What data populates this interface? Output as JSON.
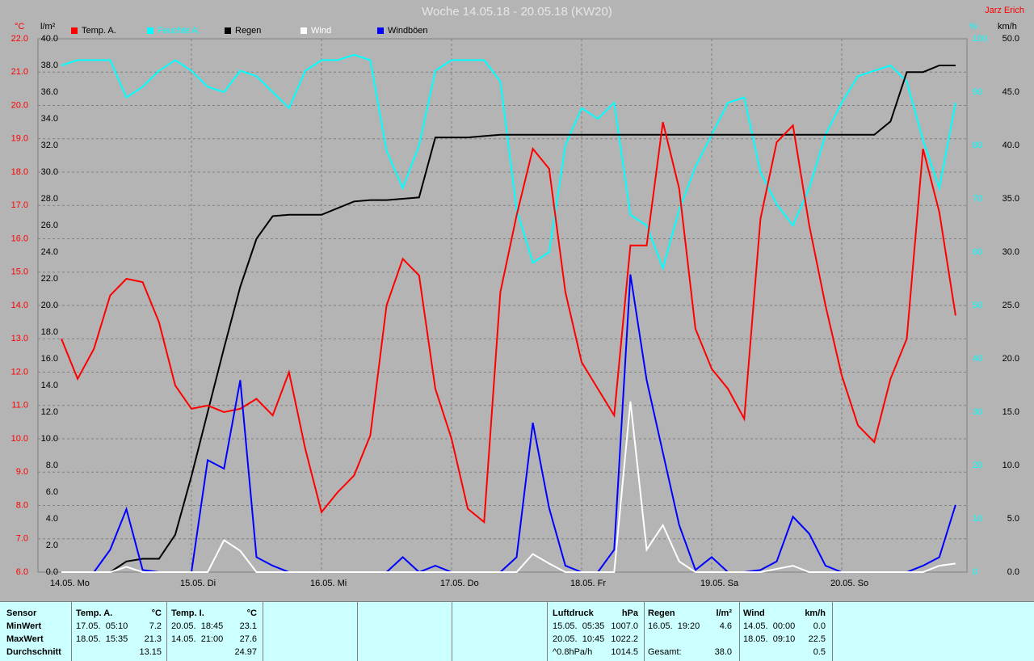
{
  "chart_data": {
    "type": "line",
    "title": "Woche 14.05.18 - 20.05.18 (KW20)",
    "author": "Jarz Erich",
    "ylabel": "°C",
    "y2label": "l/m²",
    "y3label": "%",
    "y4label": "km/h",
    "xticks": [
      "14.05. Mo",
      "15.05. Di",
      "16.05. Mi",
      "17.05. Do",
      "18.05. Fr",
      "19.05. Sa",
      "20.05. So"
    ],
    "ylim": [
      6,
      22
    ],
    "yticks": [
      {
        "value": 6,
        "label": "6.0"
      },
      {
        "value": 7,
        "label": "7.0"
      },
      {
        "value": 8,
        "label": "8.0"
      },
      {
        "value": 9,
        "label": "9.0"
      },
      {
        "value": 10,
        "label": "10.0"
      },
      {
        "value": 11,
        "label": "11.0"
      },
      {
        "value": 12,
        "label": "12.0"
      },
      {
        "value": 13,
        "label": "13.0"
      },
      {
        "value": 14,
        "label": "14.0"
      },
      {
        "value": 15,
        "label": "15.0"
      },
      {
        "value": 16,
        "label": "16.0"
      },
      {
        "value": 17,
        "label": "17.0"
      },
      {
        "value": 18,
        "label": "18.0"
      },
      {
        "value": 19,
        "label": "19.0"
      },
      {
        "value": 20,
        "label": "20.0"
      },
      {
        "value": 21,
        "label": "21.0"
      },
      {
        "value": 22,
        "label": "22.0"
      }
    ],
    "y2lim": [
      0,
      40
    ],
    "y2ticks": [
      {
        "value": 0,
        "label": "0.0"
      },
      {
        "value": 2,
        "label": "2.0"
      },
      {
        "value": 4,
        "label": "4.0"
      },
      {
        "value": 6,
        "label": "6.0"
      },
      {
        "value": 8,
        "label": "8.0"
      },
      {
        "value": 10,
        "label": "10.0"
      },
      {
        "value": 12,
        "label": "12.0"
      },
      {
        "value": 14,
        "label": "14.0"
      },
      {
        "value": 16,
        "label": "16.0"
      },
      {
        "value": 18,
        "label": "18.0"
      },
      {
        "value": 20,
        "label": "20.0"
      },
      {
        "value": 22,
        "label": "22.0"
      },
      {
        "value": 24,
        "label": "24.0"
      },
      {
        "value": 26,
        "label": "26.0"
      },
      {
        "value": 28,
        "label": "28.0"
      },
      {
        "value": 30,
        "label": "30.0"
      },
      {
        "value": 32,
        "label": "32.0"
      },
      {
        "value": 34,
        "label": "34.0"
      },
      {
        "value": 36,
        "label": "36.0"
      },
      {
        "value": 38,
        "label": "38.0"
      },
      {
        "value": 40,
        "label": "40.0"
      }
    ],
    "y3lim": [
      0,
      100
    ],
    "y3ticks": [
      0,
      10,
      20,
      30,
      40,
      50,
      60,
      70,
      80,
      90,
      100
    ],
    "y4lim": [
      0,
      50
    ],
    "y4ticks": [
      {
        "value": 0,
        "label": "0.0"
      },
      {
        "value": 5,
        "label": "5.0"
      },
      {
        "value": 10,
        "label": "10.0"
      },
      {
        "value": 15,
        "label": "15.0"
      },
      {
        "value": 20,
        "label": "20.0"
      },
      {
        "value": 25,
        "label": "25.0"
      },
      {
        "value": 30,
        "label": "30.0"
      },
      {
        "value": 35,
        "label": "35.0"
      },
      {
        "value": 40,
        "label": "40.0"
      },
      {
        "value": 45,
        "label": "45.0"
      },
      {
        "value": 50,
        "label": "50.0"
      }
    ],
    "grid": true,
    "series": [
      {
        "name": "Temp. A.",
        "color": "#ff0000",
        "axis": "y",
        "values": [
          13.0,
          11.8,
          12.7,
          14.3,
          14.8,
          14.7,
          13.5,
          11.6,
          10.9,
          11.0,
          10.8,
          10.9,
          11.2,
          10.7,
          12.0,
          9.7,
          7.8,
          8.4,
          8.9,
          10.1,
          14.0,
          15.4,
          14.9,
          11.5,
          10.0,
          7.9,
          7.5,
          14.4,
          16.7,
          18.7,
          18.1,
          14.4,
          12.3,
          11.5,
          10.7,
          15.8,
          15.8,
          19.5,
          17.5,
          13.3,
          12.1,
          11.5,
          10.6,
          16.6,
          18.9,
          19.4,
          16.4,
          14.0,
          11.9,
          10.4,
          9.9,
          11.8,
          13.0,
          18.7,
          16.8,
          13.7
        ]
      },
      {
        "name": "Feuchte A.",
        "color": "#00ffff",
        "axis": "y3",
        "values": [
          95,
          96,
          96,
          96,
          89,
          91,
          94,
          96,
          94,
          91,
          90,
          94,
          93,
          90,
          87,
          94,
          96,
          96,
          97,
          96,
          79,
          72,
          80,
          94,
          96,
          96,
          96,
          92,
          68,
          58,
          60,
          80,
          87,
          85,
          88,
          67,
          65,
          57,
          68,
          76,
          82,
          88,
          89,
          75,
          69,
          65,
          72,
          82,
          88,
          93,
          94,
          95,
          92,
          81,
          72,
          88
        ]
      },
      {
        "name": "Regen",
        "color": "#000000",
        "axis": "y2",
        "values": [
          0,
          0,
          0,
          0,
          0.8,
          1.0,
          1.0,
          2.8,
          7.2,
          12.0,
          16.8,
          21.4,
          25.0,
          26.7,
          26.8,
          26.8,
          26.8,
          27.3,
          27.8,
          27.9,
          27.9,
          28.0,
          28.1,
          32.6,
          32.6,
          32.6,
          32.7,
          32.8,
          32.8,
          32.8,
          32.8,
          32.8,
          32.8,
          32.8,
          32.8,
          32.8,
          32.8,
          32.8,
          32.8,
          32.8,
          32.8,
          32.8,
          32.8,
          32.8,
          32.8,
          32.8,
          32.8,
          32.8,
          32.8,
          32.8,
          32.8,
          33.8,
          37.5,
          37.5,
          38.0,
          38.0
        ]
      },
      {
        "name": "Wind",
        "color": "#ffffff",
        "axis": "y4",
        "values": [
          0,
          0,
          0,
          0,
          0.5,
          0,
          0,
          0,
          0,
          0,
          3.0,
          2.0,
          0,
          0,
          0,
          0,
          0,
          0,
          0,
          0,
          0,
          0,
          0,
          0,
          0,
          0,
          0,
          0,
          0,
          1.7,
          0.8,
          0,
          0,
          0,
          0,
          16.0,
          2.1,
          4.4,
          1.0,
          0,
          0,
          0,
          0,
          0,
          0.3,
          0.6,
          0,
          0,
          0,
          0,
          0,
          0,
          0,
          0,
          0.6,
          0.8
        ]
      },
      {
        "name": "Windböen",
        "color": "#0000ff",
        "axis": "y4",
        "values": [
          0,
          0,
          0,
          2.1,
          5.9,
          0.2,
          0,
          0,
          0,
          10.5,
          9.7,
          18.0,
          1.4,
          0.6,
          0,
          0,
          0,
          0,
          0,
          0,
          0,
          1.4,
          0,
          0.6,
          0,
          0,
          0,
          0,
          1.4,
          14.0,
          6.0,
          0.6,
          0,
          0,
          2.1,
          27.9,
          18.0,
          11.2,
          4.4,
          0.2,
          1.4,
          0,
          0,
          0.2,
          1.0,
          5.2,
          3.6,
          0.6,
          0,
          0,
          0,
          0,
          0,
          0.6,
          1.4,
          6.3
        ]
      }
    ]
  },
  "table": {
    "header": [
      "Sensor",
      "Temp. A.",
      "°C",
      "Temp. I.",
      "°C",
      "Luftdruck",
      "hPa",
      "Regen",
      "l/m²",
      "Wind",
      "km/h"
    ],
    "rows": [
      [
        "MinWert",
        "17.05.  05:10",
        "7.2",
        "20.05.  18:45",
        "23.1",
        "15.05.  05:35",
        "1007.0",
        "16.05.  19:20",
        "4.6",
        "14.05.  00:00",
        "0.0"
      ],
      [
        "MaxWert",
        "18.05.  15:35",
        "21.3",
        "14.05.  21:00",
        "27.6",
        "20.05.  10:45",
        "1022.2",
        null,
        null,
        "18.05.  09:10",
        "22.5"
      ],
      [
        "Durchschnitt",
        null,
        "13.15",
        null,
        "24.97",
        "^0.8hPa/h",
        "1014.5",
        "Gesamt:",
        "38.0",
        null,
        "0.5"
      ]
    ]
  }
}
